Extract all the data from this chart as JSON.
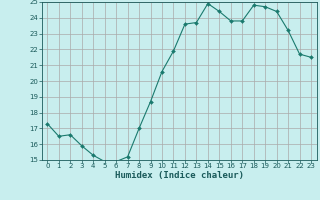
{
  "x": [
    0,
    1,
    2,
    3,
    4,
    5,
    6,
    7,
    8,
    9,
    10,
    11,
    12,
    13,
    14,
    15,
    16,
    17,
    18,
    19,
    20,
    21,
    22,
    23
  ],
  "y": [
    17.3,
    16.5,
    16.6,
    15.9,
    15.3,
    14.9,
    14.9,
    15.2,
    17.0,
    18.7,
    20.6,
    21.9,
    23.6,
    23.7,
    24.9,
    24.4,
    23.8,
    23.8,
    24.8,
    24.7,
    24.4,
    23.2,
    21.7,
    21.5
  ],
  "line_color": "#1a7a6e",
  "marker_color": "#1a7a6e",
  "bg_color": "#c8eeee",
  "grid_color": "#aaaaaa",
  "tick_color": "#1a5a5a",
  "xlabel": "Humidex (Indice chaleur)",
  "ylim": [
    15,
    25
  ],
  "xlim": [
    -0.5,
    23.5
  ],
  "yticks": [
    15,
    16,
    17,
    18,
    19,
    20,
    21,
    22,
    23,
    24,
    25
  ],
  "xticks": [
    0,
    1,
    2,
    3,
    4,
    5,
    6,
    7,
    8,
    9,
    10,
    11,
    12,
    13,
    14,
    15,
    16,
    17,
    18,
    19,
    20,
    21,
    22,
    23
  ],
  "marker_size": 2.0,
  "line_width": 0.8,
  "tick_fontsize": 5.0,
  "xlabel_fontsize": 6.5
}
